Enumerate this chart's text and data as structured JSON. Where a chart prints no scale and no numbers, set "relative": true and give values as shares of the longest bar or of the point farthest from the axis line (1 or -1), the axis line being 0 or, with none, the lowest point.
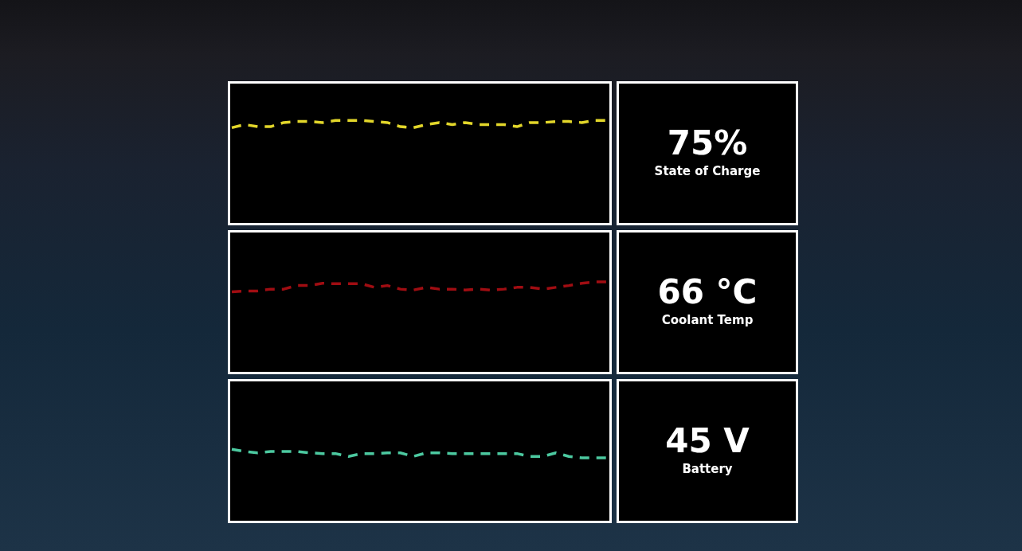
{
  "chart_data": [
    {
      "type": "line",
      "relative": true,
      "line_style": "dashed",
      "categories": [
        null,
        null,
        null,
        null,
        null,
        null,
        null,
        null,
        null,
        null,
        null,
        null,
        null,
        null,
        null,
        null,
        null,
        null,
        null,
        null,
        null,
        null,
        null,
        null,
        null,
        null,
        null,
        null,
        null,
        null
      ],
      "series": [
        {
          "color": "#e2d62a",
          "values": [
            0.93,
            0.96,
            0.94,
            0.94,
            0.98,
            0.99,
            0.99,
            0.98,
            1,
            1,
            1,
            0.99,
            0.98,
            0.94,
            0.93,
            0.96,
            0.98,
            0.96,
            0.98,
            0.96,
            0.96,
            0.96,
            0.94,
            0.98,
            0.98,
            0.99,
            0.99,
            0.98,
            1,
            1
          ]
        }
      ]
    },
    {
      "type": "other",
      "title": "75%",
      "subtitle": "State of Charge"
    },
    {
      "type": "line",
      "relative": true,
      "line_style": "dashed",
      "categories": [
        null,
        null,
        null,
        null,
        null,
        null,
        null,
        null,
        null,
        null,
        null,
        null,
        null,
        null,
        null,
        null,
        null,
        null,
        null,
        null,
        null,
        null,
        null,
        null,
        null,
        null,
        null,
        null,
        null,
        null
      ],
      "series": [
        {
          "color": "#a00d12",
          "values": [
            0.89,
            0.9,
            0.9,
            0.92,
            0.92,
            0.96,
            0.96,
            0.985,
            0.98,
            0.98,
            0.98,
            0.94,
            0.96,
            0.92,
            0.91,
            0.94,
            0.92,
            0.92,
            0.91,
            0.92,
            0.91,
            0.92,
            0.94,
            0.94,
            0.92,
            0.94,
            0.96,
            0.985,
            1,
            1
          ]
        }
      ]
    },
    {
      "type": "other",
      "title": "66 °C",
      "subtitle": "Coolant Temp"
    },
    {
      "type": "line",
      "relative": true,
      "line_style": "dashed",
      "categories": [
        null,
        null,
        null,
        null,
        null,
        null,
        null,
        null,
        null,
        null,
        null,
        null,
        null,
        null,
        null,
        null,
        null,
        null,
        null,
        null,
        null,
        null,
        null,
        null,
        null,
        null,
        null,
        null,
        null,
        null
      ],
      "series": [
        {
          "color": "#4cc9a0",
          "values": [
            1,
            0.97,
            0.95,
            0.97,
            0.97,
            0.97,
            0.95,
            0.94,
            0.94,
            0.9,
            0.94,
            0.94,
            0.95,
            0.95,
            0.9,
            0.95,
            0.95,
            0.94,
            0.94,
            0.94,
            0.94,
            0.94,
            0.94,
            0.9,
            0.9,
            0.95,
            0.9,
            0.88,
            0.88,
            0.88
          ]
        }
      ]
    },
    {
      "type": "other",
      "title": "45 V",
      "subtitle": "Battery"
    }
  ]
}
